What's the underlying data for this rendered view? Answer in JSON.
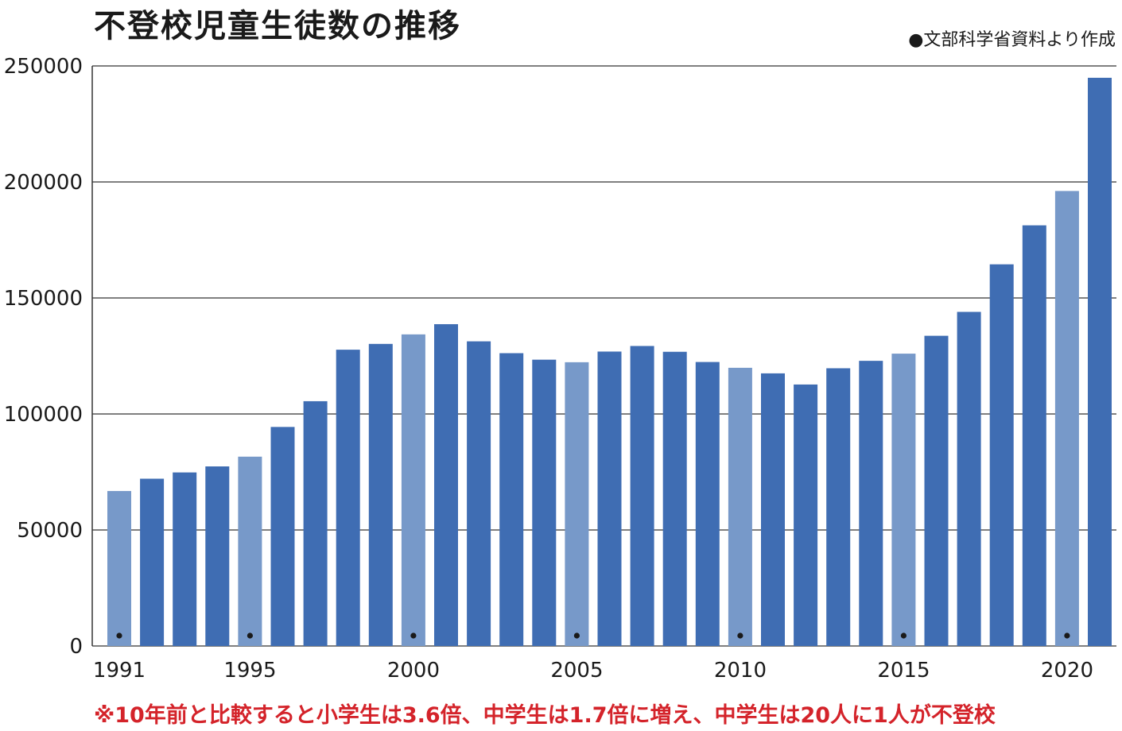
{
  "title": "不登校児童生徒数の推移",
  "source": "●文部科学省資料より作成",
  "note": "※10年前と比較すると小学生は3.6倍、中学生は1.7倍に増え、中学生は20人に1人が不登校",
  "colors": {
    "bar": "#3f6db3",
    "bar_highlight": "#7799c9",
    "grid": "#333333",
    "note": "#d4232a",
    "marker": "#1a1a1a"
  },
  "chart_data": {
    "type": "bar",
    "title": "不登校児童生徒数の推移",
    "xlabel": "",
    "ylabel": "",
    "ylim": [
      0,
      250000
    ],
    "yticks": [
      0,
      50000,
      100000,
      150000,
      200000,
      250000
    ],
    "xtick_labels": [
      "1991",
      "1995",
      "2000",
      "2005",
      "2010",
      "2015",
      "2020"
    ],
    "grid": "horizontal",
    "categories": [
      1991,
      1992,
      1993,
      1994,
      1995,
      1996,
      1997,
      1998,
      1999,
      2000,
      2001,
      2002,
      2003,
      2004,
      2005,
      2006,
      2007,
      2008,
      2009,
      2010,
      2011,
      2012,
      2013,
      2014,
      2015,
      2016,
      2017,
      2018,
      2019,
      2020,
      2021
    ],
    "values": [
      66800,
      72100,
      74800,
      77400,
      81600,
      94400,
      105500,
      127700,
      130200,
      134300,
      138700,
      131300,
      126200,
      123400,
      122300,
      126900,
      129300,
      126800,
      122400,
      119900,
      117500,
      112700,
      119700,
      122900,
      126000,
      133700,
      144000,
      164500,
      181300,
      196100,
      244900
    ],
    "highlighted": [
      1991,
      1995,
      2000,
      2005,
      2010,
      2015,
      2020
    ]
  }
}
